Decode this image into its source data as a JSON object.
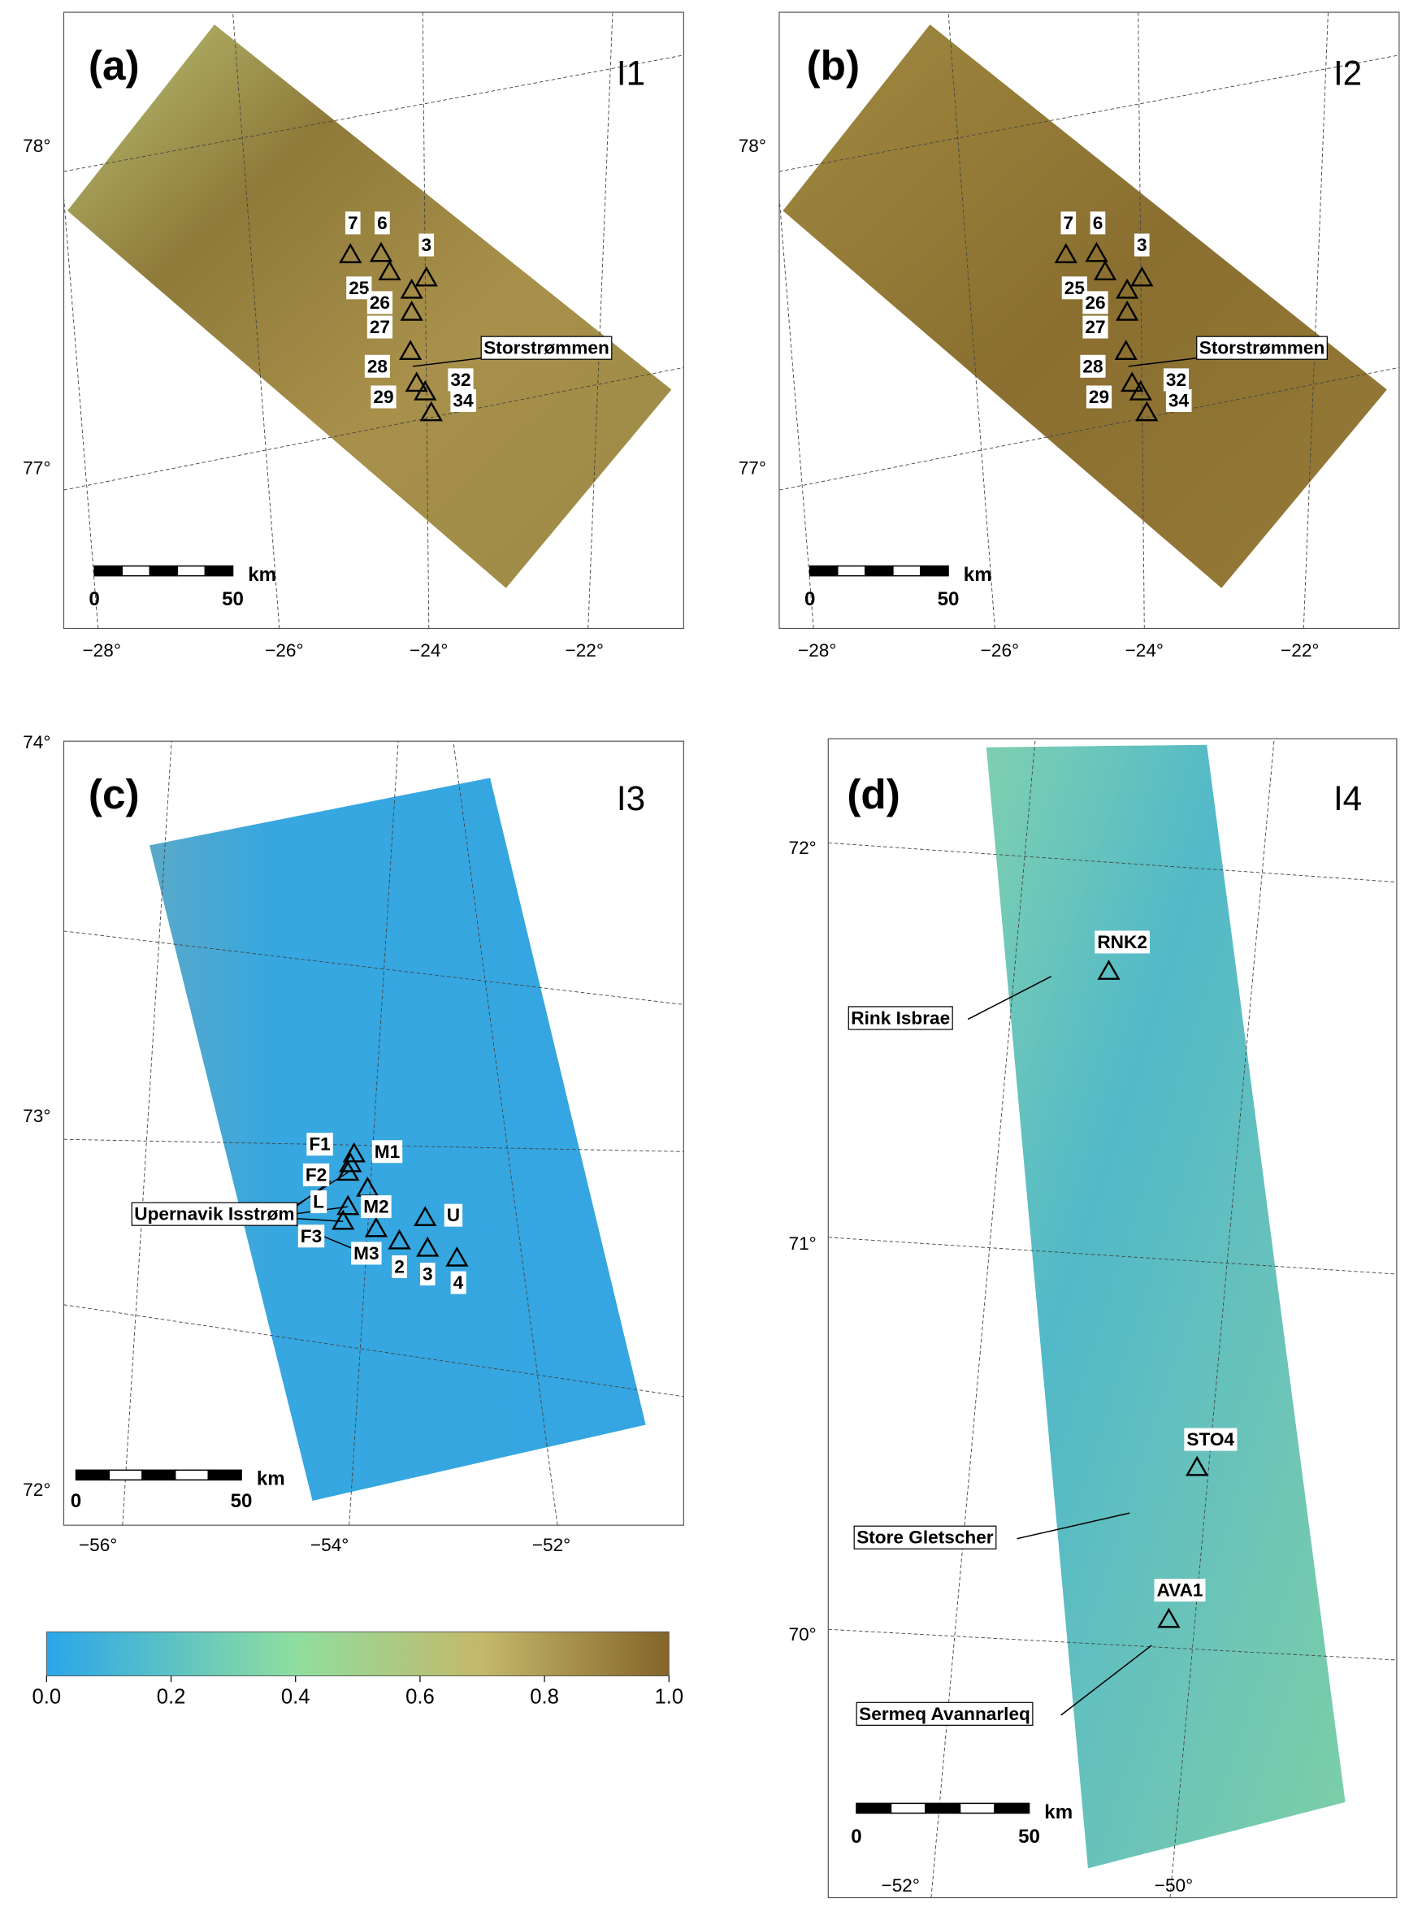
{
  "panels": [
    {
      "label": "(a)",
      "image": "I1",
      "latitudes": [
        "78°",
        "77°"
      ],
      "longitudes": [
        "−28°",
        "−26°",
        "−24°",
        "−22°"
      ],
      "stations": [
        "7",
        "6",
        "3",
        "25",
        "26",
        "27",
        "28",
        "32",
        "29",
        "34"
      ],
      "places": [
        "Storstrømmen"
      ],
      "scale": {
        "start": "0",
        "end": "50",
        "unit": "km"
      }
    },
    {
      "label": "(b)",
      "image": "I2",
      "latitudes": [
        "78°",
        "77°"
      ],
      "longitudes": [
        "−28°",
        "−26°",
        "−24°",
        "−22°"
      ],
      "stations": [
        "7",
        "6",
        "3",
        "25",
        "26",
        "27",
        "28",
        "32",
        "29",
        "34"
      ],
      "places": [
        "Storstrømmen"
      ],
      "scale": {
        "start": "0",
        "end": "50",
        "unit": "km"
      }
    },
    {
      "label": "(c)",
      "image": "I3",
      "latitudes": [
        "74°",
        "73°",
        "72°"
      ],
      "longitudes": [
        "−56°",
        "−54°",
        "−52°"
      ],
      "stations": [
        "F1",
        "M1",
        "F2",
        "L",
        "M2",
        "U",
        "F3",
        "M3",
        "2",
        "3",
        "4"
      ],
      "places": [
        "Upernavik Isstrøm"
      ],
      "scale": {
        "start": "0",
        "end": "50",
        "unit": "km"
      }
    },
    {
      "label": "(d)",
      "image": "I4",
      "latitudes": [
        "72°",
        "71°",
        "70°"
      ],
      "longitudes": [
        "−52°",
        "−50°"
      ],
      "stations": [
        "RNK2",
        "STO4",
        "AVA1"
      ],
      "places": [
        "Rink Isbrae",
        "Store Gletscher",
        "Sermeq Avannarleq"
      ],
      "scale": {
        "start": "0",
        "end": "50",
        "unit": "km"
      }
    }
  ],
  "colorbar": {
    "range": [
      0,
      1
    ],
    "ticks": [
      {
        "value": 0,
        "label": "0.0"
      },
      0.2,
      0.4,
      0.6,
      0.8,
      {
        "value": 1,
        "label": "1.0"
      }
    ]
  }
}
